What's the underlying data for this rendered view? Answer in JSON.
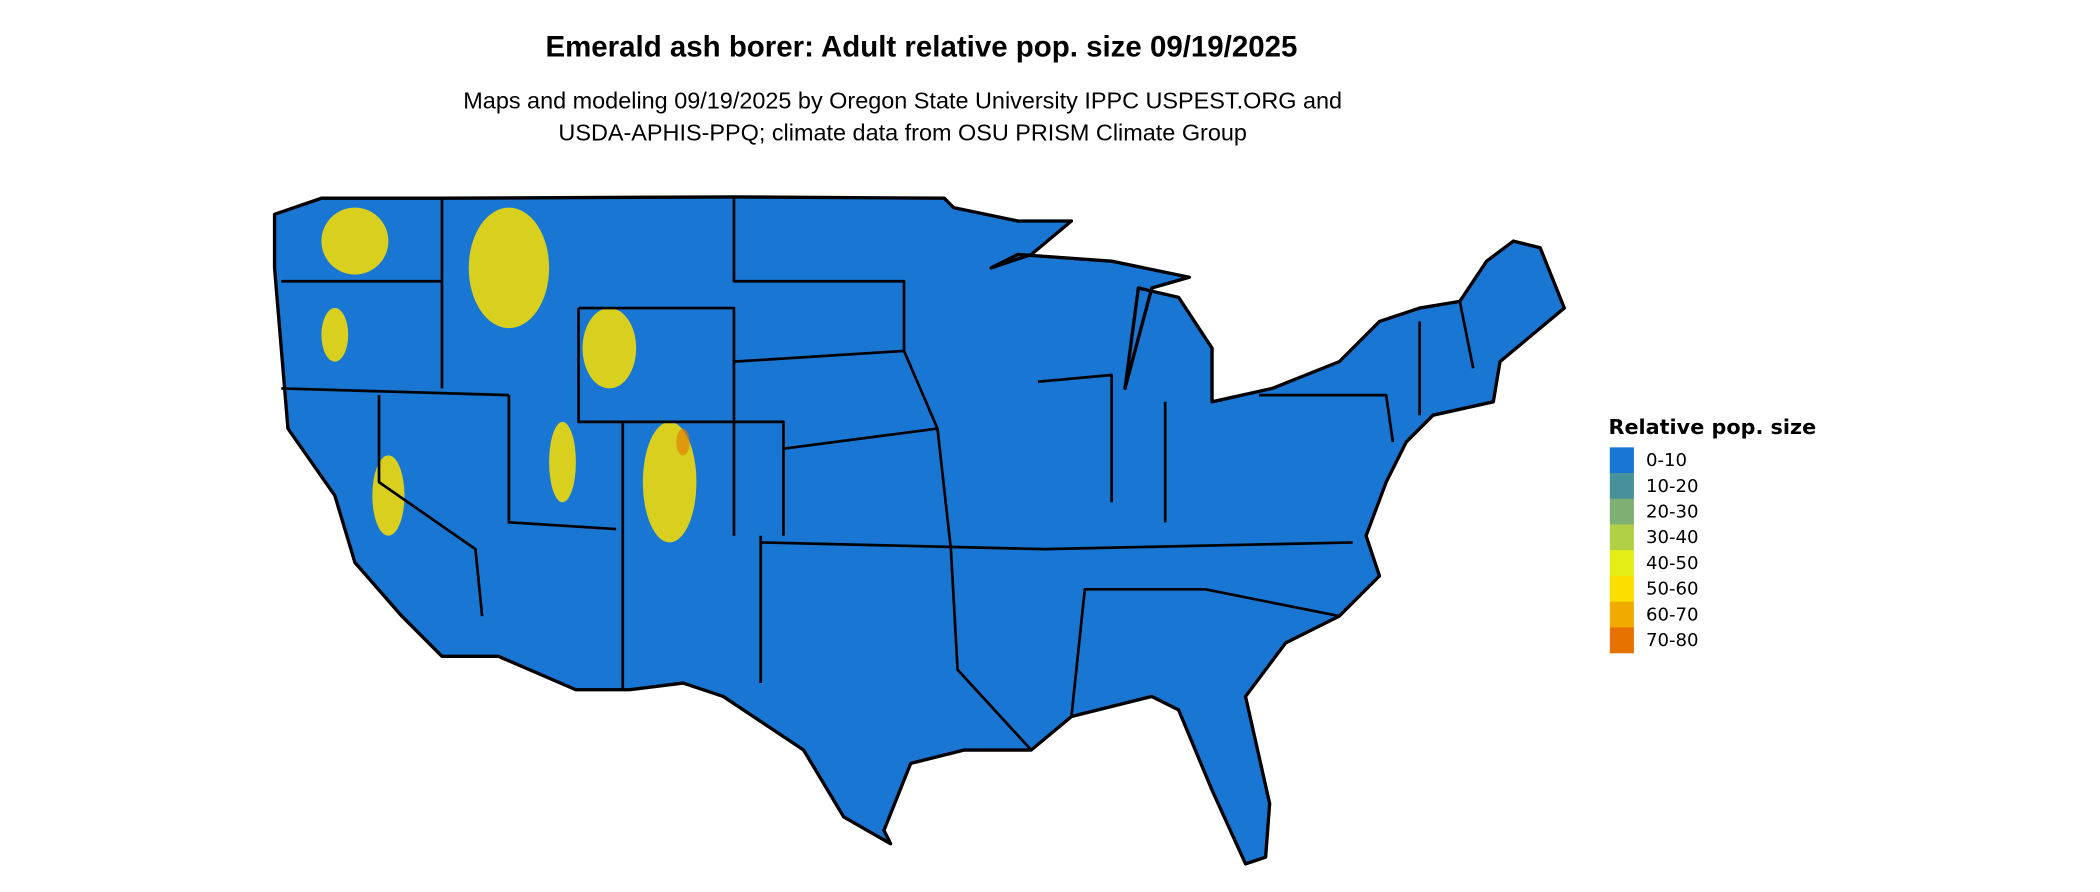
{
  "title": "Emerald ash borer: Adult relative pop. size 09/19/2025",
  "subtitle_line1": "Maps and modeling 09/19/2025 by Oregon State University IPPC USPEST.ORG and",
  "subtitle_line2": "USDA-APHIS-PPQ; climate data from OSU PRISM Climate Group",
  "legend": {
    "title": "Relative pop. size",
    "items": [
      {
        "label": "0-10",
        "color": "#1976D2"
      },
      {
        "label": "10-20",
        "color": "#48909A"
      },
      {
        "label": "20-30",
        "color": "#7FAF72"
      },
      {
        "label": "30-40",
        "color": "#B2D046"
      },
      {
        "label": "40-50",
        "color": "#E3EE17"
      },
      {
        "label": "50-60",
        "color": "#FADF00"
      },
      {
        "label": "60-70",
        "color": "#F0AA00"
      },
      {
        "label": "70-80",
        "color": "#E67300"
      }
    ]
  },
  "map": {
    "region": "Contiguous United States",
    "dominant_class": "0-10",
    "hotspots_class": "50-60"
  }
}
